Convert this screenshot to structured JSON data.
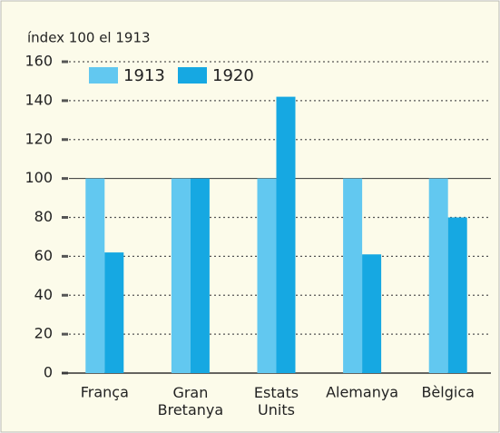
{
  "chart_data": {
    "type": "bar",
    "ylabel": "índex 100 el 1913",
    "categories": [
      "França",
      "Gran Bretanya",
      "Estats Units",
      "Alemanya",
      "Bèlgica"
    ],
    "series": [
      {
        "name": "1913",
        "color": "#62c8f0",
        "values": [
          100,
          100,
          100,
          100,
          100
        ]
      },
      {
        "name": "1920",
        "color": "#16a8e2",
        "values": [
          62,
          100,
          142,
          61,
          80
        ]
      }
    ],
    "ylim": [
      0,
      160
    ],
    "yticks": [
      0,
      20,
      40,
      60,
      80,
      100,
      120,
      140,
      160
    ],
    "grid": true,
    "reference_line": 100,
    "legend": "top-left"
  }
}
